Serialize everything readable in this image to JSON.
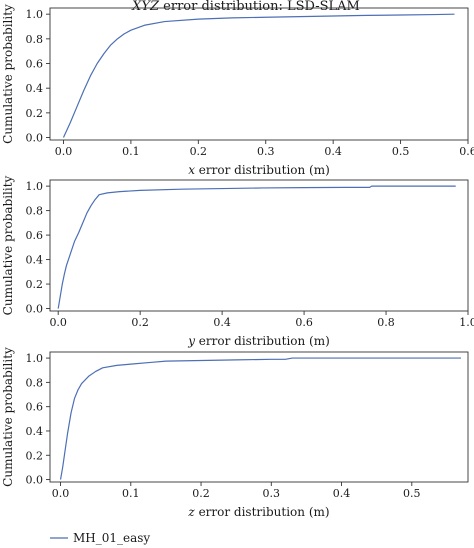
{
  "figure_title": {
    "italic_part": "XYZ",
    "rest": " error distribution: LSD-SLAM"
  },
  "legend": {
    "label": "MH_01_easy",
    "color": "#4c6fb5",
    "placement": "bottom-left"
  },
  "chart_data": [
    {
      "type": "line",
      "title": "XYZ error distribution: LSD-SLAM",
      "xlabel_var": "x",
      "xlabel_rest": " error distribution (m)",
      "ylabel": "Cumulative probability",
      "xlim": [
        -0.02,
        0.6
      ],
      "ylim": [
        -0.02,
        1.05
      ],
      "xticks": [
        0.0,
        0.1,
        0.2,
        0.3,
        0.4,
        0.5,
        0.6
      ],
      "xtick_labels": [
        "0.0",
        "0.1",
        "0.2",
        "0.3",
        "0.4",
        "0.5",
        "0.6"
      ],
      "yticks": [
        0.0,
        0.2,
        0.4,
        0.6,
        0.8,
        1.0
      ],
      "ytick_labels": [
        "0.0",
        "0.2",
        "0.4",
        "0.6",
        "0.8",
        "1.0"
      ],
      "grid": false,
      "series": [
        {
          "name": "MH_01_easy",
          "color": "#4c6fb5",
          "x": [
            0.0,
            0.01,
            0.02,
            0.03,
            0.04,
            0.05,
            0.06,
            0.07,
            0.08,
            0.09,
            0.1,
            0.12,
            0.15,
            0.2,
            0.25,
            0.3,
            0.35,
            0.4,
            0.45,
            0.5,
            0.55,
            0.58
          ],
          "y": [
            0.0,
            0.12,
            0.25,
            0.38,
            0.5,
            0.6,
            0.68,
            0.75,
            0.8,
            0.84,
            0.87,
            0.91,
            0.94,
            0.96,
            0.97,
            0.975,
            0.98,
            0.985,
            0.99,
            0.993,
            0.997,
            1.0
          ]
        }
      ]
    },
    {
      "type": "line",
      "title": "",
      "xlabel_var": "y",
      "xlabel_rest": " error distribution (m)",
      "ylabel": "Cumulative probability",
      "xlim": [
        -0.02,
        1.0
      ],
      "ylim": [
        -0.02,
        1.05
      ],
      "xticks": [
        0.0,
        0.2,
        0.4,
        0.6,
        0.8,
        1.0
      ],
      "xtick_labels": [
        "0.0",
        "0.2",
        "0.4",
        "0.6",
        "0.8",
        "1.0"
      ],
      "yticks": [
        0.0,
        0.2,
        0.4,
        0.6,
        0.8,
        1.0
      ],
      "ytick_labels": [
        "0.0",
        "0.2",
        "0.4",
        "0.6",
        "0.8",
        "1.0"
      ],
      "grid": false,
      "series": [
        {
          "name": "MH_01_easy",
          "color": "#4c6fb5",
          "x": [
            0.0,
            0.005,
            0.01,
            0.015,
            0.02,
            0.03,
            0.04,
            0.05,
            0.06,
            0.07,
            0.08,
            0.09,
            0.1,
            0.12,
            0.15,
            0.2,
            0.3,
            0.4,
            0.5,
            0.6,
            0.7,
            0.76,
            0.765,
            0.8,
            0.9,
            0.97
          ],
          "y": [
            0.0,
            0.1,
            0.2,
            0.28,
            0.35,
            0.45,
            0.55,
            0.62,
            0.7,
            0.78,
            0.84,
            0.89,
            0.93,
            0.945,
            0.955,
            0.965,
            0.975,
            0.98,
            0.985,
            0.988,
            0.99,
            0.99,
            1.0,
            1.0,
            1.0,
            1.0
          ]
        }
      ]
    },
    {
      "type": "line",
      "title": "",
      "xlabel_var": "z",
      "xlabel_rest": " error distribution (m)",
      "ylabel": "Cumulative probability",
      "xlim": [
        -0.015,
        0.58
      ],
      "ylim": [
        -0.02,
        1.05
      ],
      "xticks": [
        0.0,
        0.1,
        0.2,
        0.3,
        0.4,
        0.5
      ],
      "xtick_labels": [
        "0.0",
        "0.1",
        "0.2",
        "0.3",
        "0.4",
        "0.5"
      ],
      "yticks": [
        0.0,
        0.2,
        0.4,
        0.6,
        0.8,
        1.0
      ],
      "ytick_labels": [
        "0.0",
        "0.2",
        "0.4",
        "0.6",
        "0.8",
        "1.0"
      ],
      "grid": false,
      "series": [
        {
          "name": "MH_01_easy",
          "color": "#4c6fb5",
          "x": [
            0.0,
            0.003,
            0.006,
            0.01,
            0.015,
            0.02,
            0.025,
            0.03,
            0.04,
            0.05,
            0.06,
            0.08,
            0.1,
            0.13,
            0.15,
            0.2,
            0.25,
            0.3,
            0.32,
            0.33,
            0.4,
            0.5,
            0.57
          ],
          "y": [
            0.0,
            0.1,
            0.22,
            0.38,
            0.55,
            0.67,
            0.74,
            0.79,
            0.85,
            0.89,
            0.92,
            0.94,
            0.95,
            0.965,
            0.975,
            0.98,
            0.985,
            0.99,
            0.99,
            1.0,
            1.0,
            1.0,
            1.0
          ]
        }
      ]
    }
  ]
}
